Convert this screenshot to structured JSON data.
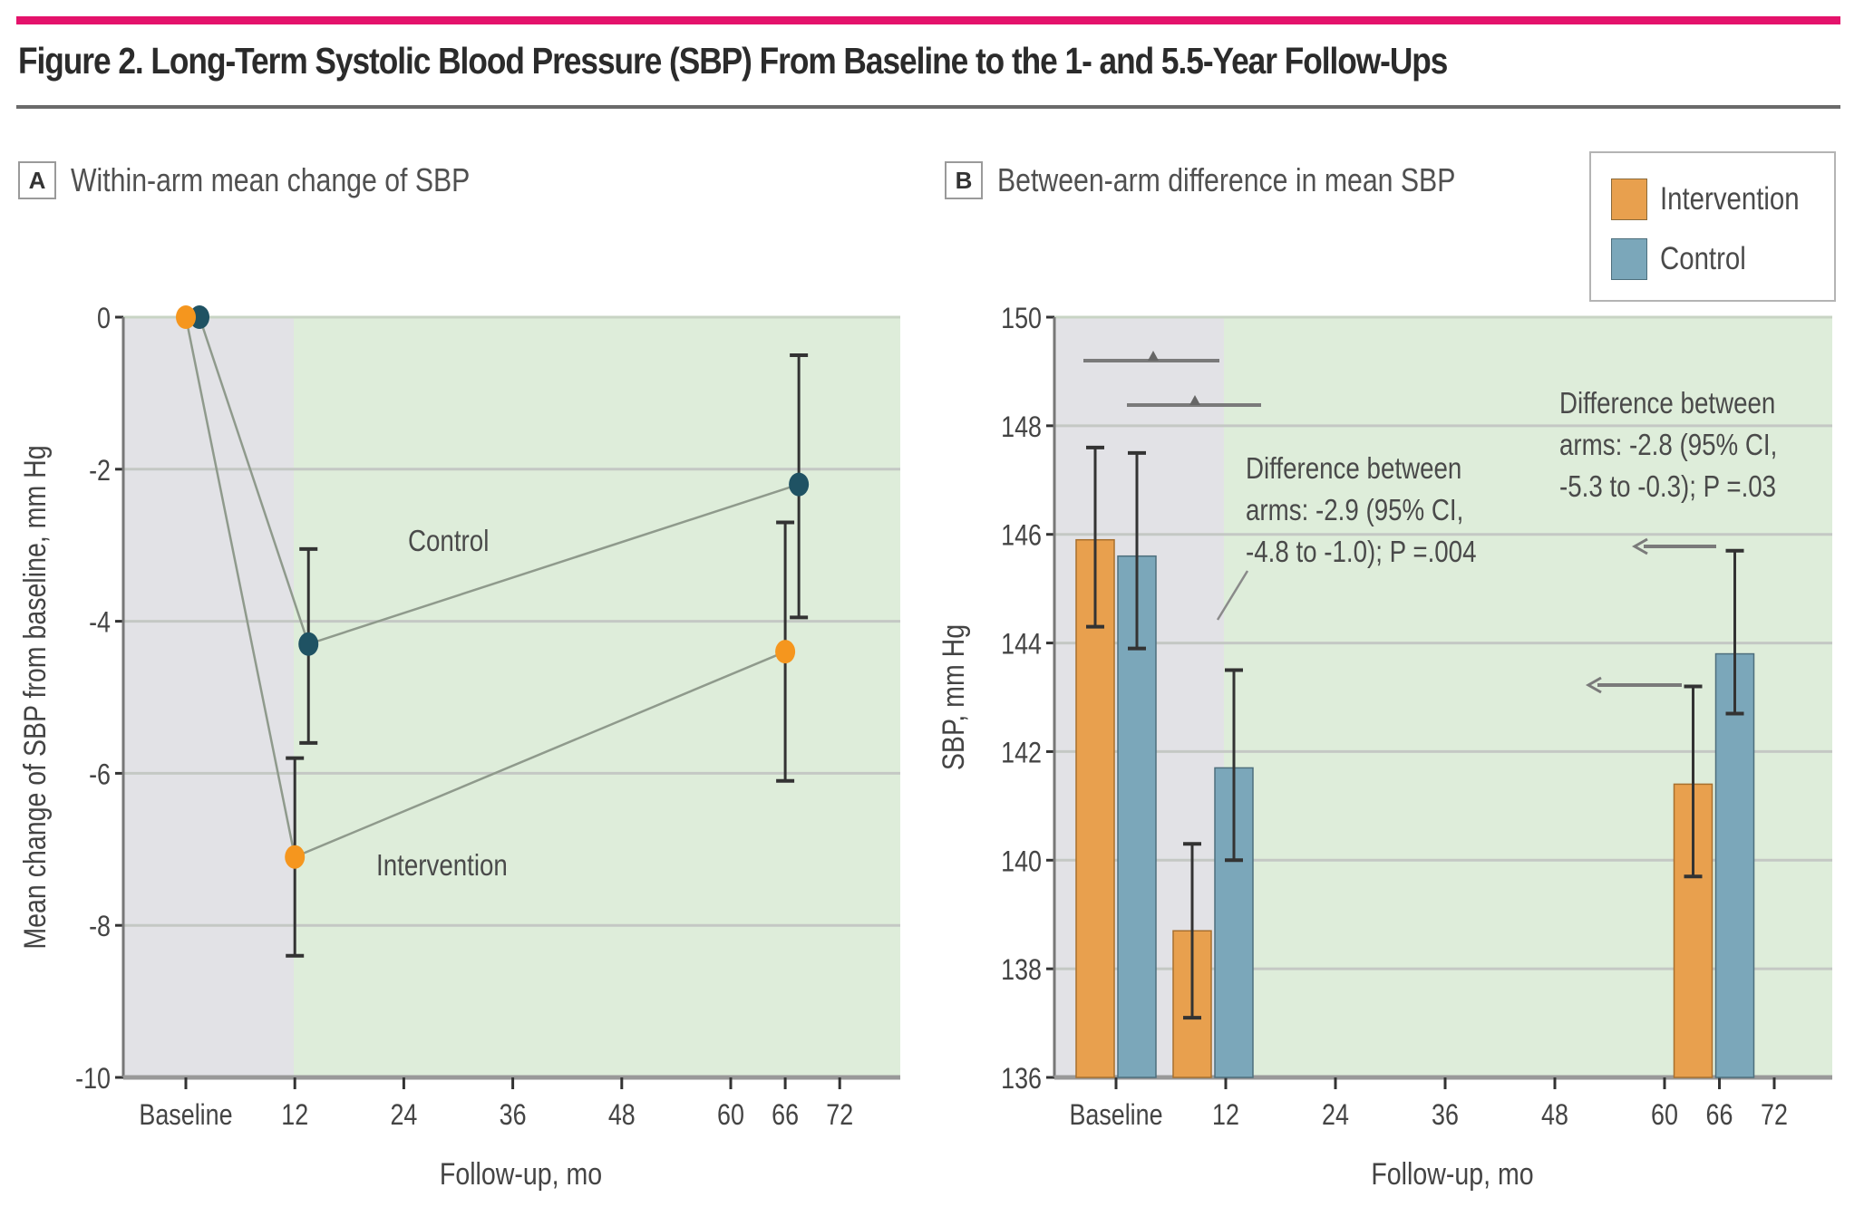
{
  "figure": {
    "title": "Figure 2. Long-Term Systolic Blood Pressure (SBP) From Baseline to the 1- and 5.5-Year Follow-Ups",
    "accent_color": "#e4126b"
  },
  "colors": {
    "intervention": "#e8a04e",
    "intervention_point": "#f5961e",
    "control": "#7ba7ba",
    "control_point": "#1f5263",
    "baseline_region": "#e2e2e6",
    "followup_region": "#deedda"
  },
  "panel_a": {
    "letter": "A",
    "heading": "Within-arm mean change of SBP",
    "label_control": "Control",
    "label_intervention": "Intervention"
  },
  "panel_b": {
    "letter": "B",
    "heading": "Between-arm difference in mean SBP",
    "annotation_12mo": [
      "Difference between",
      "arms: -2.9 (95% CI,",
      "-4.8 to -1.0); P =.004"
    ],
    "annotation_66mo": [
      "Difference between",
      "arms: -2.8 (95% CI,",
      "-5.3 to -0.3); P =.03"
    ]
  },
  "legend": {
    "items": [
      {
        "label": "Intervention"
      },
      {
        "label": "Control"
      }
    ]
  },
  "chart_data": [
    {
      "type": "line",
      "title": "Within-arm mean change of SBP",
      "xlabel": "Follow-up, mo",
      "ylabel": "Mean change of SBP from baseline, mm Hg",
      "xlim": [
        0,
        72
      ],
      "ylim": [
        -10,
        0
      ],
      "xticks": [
        0,
        12,
        24,
        36,
        48,
        60,
        66,
        72
      ],
      "xtick_labels": [
        "Baseline",
        "12",
        "24",
        "36",
        "48",
        "60",
        "66",
        "72"
      ],
      "yticks": [
        0,
        -2,
        -4,
        -6,
        -8,
        -10
      ],
      "ytick_labels": [
        "0",
        "-2",
        "-4",
        "-6",
        "-8",
        "-10"
      ],
      "grid": true,
      "shaded_regions": [
        {
          "from": "axis-start",
          "to": 12,
          "label": "baseline-period"
        }
      ],
      "series": [
        {
          "name": "Intervention",
          "x": [
            0,
            12,
            66
          ],
          "y": [
            0,
            -7.1,
            -4.4
          ],
          "ci_low": [
            null,
            -8.4,
            -6.1
          ],
          "ci_high": [
            null,
            -5.8,
            -2.7
          ]
        },
        {
          "name": "Control",
          "x": [
            1.5,
            13.5,
            67.5
          ],
          "y": [
            0,
            -4.3,
            -2.2
          ],
          "ci_low": [
            null,
            -5.6,
            -3.95
          ],
          "ci_high": [
            null,
            -3.05,
            -0.5
          ]
        }
      ]
    },
    {
      "type": "bar",
      "title": "Between-arm difference in mean SBP",
      "xlabel": "Follow-up, mo",
      "ylabel": "SBP, mm Hg",
      "xlim": [
        0,
        72
      ],
      "ylim": [
        136,
        150
      ],
      "xticks": [
        0,
        12,
        24,
        36,
        48,
        60,
        66,
        72
      ],
      "xtick_labels": [
        "Baseline",
        "12",
        "24",
        "36",
        "48",
        "60",
        "66",
        "72"
      ],
      "yticks": [
        136,
        138,
        140,
        142,
        144,
        146,
        148,
        150
      ],
      "ytick_labels": [
        "136",
        "138",
        "140",
        "142",
        "144",
        "146",
        "148",
        "150"
      ],
      "grid": true,
      "legend_position": "top-right",
      "categories": [
        "Baseline",
        "12",
        "66"
      ],
      "series": [
        {
          "name": "Intervention",
          "values": [
            145.9,
            138.7,
            141.4
          ],
          "ci_low": [
            144.3,
            137.1,
            139.7
          ],
          "ci_high": [
            147.6,
            140.3,
            143.2
          ]
        },
        {
          "name": "Control",
          "values": [
            145.6,
            141.7,
            143.8
          ],
          "ci_low": [
            143.9,
            140.0,
            142.7
          ],
          "ci_high": [
            147.5,
            143.5,
            145.7
          ]
        }
      ],
      "annotations": [
        "Difference between arms: -2.9 (95% CI, -4.8 to -1.0); P =.004",
        "Difference between arms: -2.8 (95% CI, -5.3 to -0.3); P =.03"
      ]
    }
  ]
}
